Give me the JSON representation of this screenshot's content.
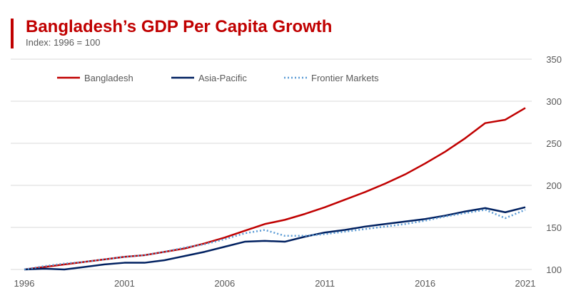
{
  "chart_data": {
    "type": "line",
    "title": "Bangladesh’s GDP Per Capita Growth",
    "subtitle": "Index: 1996 = 100",
    "xlabel": "",
    "ylabel": "",
    "x": [
      1996,
      1997,
      1998,
      1999,
      2000,
      2001,
      2002,
      2003,
      2004,
      2005,
      2006,
      2007,
      2008,
      2009,
      2010,
      2011,
      2012,
      2013,
      2014,
      2015,
      2016,
      2017,
      2018,
      2019,
      2020,
      2021
    ],
    "x_ticks": [
      "1996",
      "2001",
      "2006",
      "2011",
      "2016",
      "2021"
    ],
    "y_ticks": [
      "100",
      "150",
      "200",
      "250",
      "300",
      "350"
    ],
    "ylim": [
      100,
      350
    ],
    "y_axis_side": "right",
    "grid": "horizontal",
    "legend_placement": "top-left",
    "series": [
      {
        "name": "Bangladesh",
        "color": "#C00000",
        "style": "solid",
        "values": [
          100,
          103,
          106,
          109,
          112,
          115,
          117,
          121,
          125,
          131,
          138,
          146,
          154,
          159,
          166,
          174,
          183,
          192,
          202,
          213,
          226,
          240,
          256,
          274,
          278,
          292
        ]
      },
      {
        "name": "Asia-Pacific",
        "color": "#002060",
        "style": "solid",
        "values": [
          100,
          101,
          100,
          103,
          106,
          108,
          108,
          111,
          116,
          121,
          127,
          133,
          134,
          133,
          139,
          144,
          147,
          151,
          154,
          157,
          160,
          164,
          169,
          173,
          168,
          174
        ]
      },
      {
        "name": "Frontier Markets",
        "color": "#5B9BD5",
        "style": "dotted",
        "values": [
          100,
          104,
          107,
          109,
          112,
          115,
          117,
          121,
          126,
          130,
          136,
          143,
          147,
          140,
          140,
          142,
          145,
          148,
          151,
          154,
          158,
          163,
          167,
          171,
          161,
          171
        ]
      }
    ]
  }
}
